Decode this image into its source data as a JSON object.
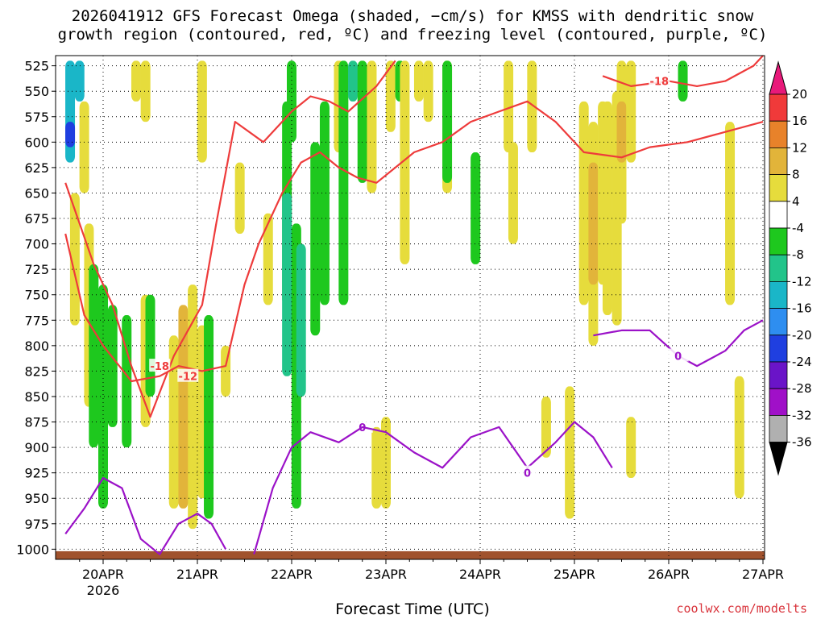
{
  "page": {
    "title_line1": "2026041912 GFS Forecast Omega (shaded, −cm/s) for KMSS with dendritic snow",
    "title_line2": "growth region (contoured, red, ºC) and freezing level (contoured, purple, ºC)",
    "xlabel": "Forecast Time (UTC)",
    "credit": "coolwx.com/modelts"
  },
  "chart_data": {
    "type": "heatmap",
    "title": "2026041912 GFS Forecast Omega (shaded, −cm/s) for KMSS with dendritic snow growth region (contoured, red, ºC) and freezing level (contoured, purple, ºC)",
    "xlabel": "Forecast Time (UTC)",
    "ylabel": "",
    "x_axis": {
      "ticks": [
        "20APR",
        "21APR",
        "22APR",
        "23APR",
        "24APR",
        "25APR",
        "26APR",
        "27APR"
      ],
      "tick_sublabel": {
        "20APR": "2026"
      },
      "xlim_days": [
        -0.4,
        7.0
      ]
    },
    "y_axis": {
      "ticks": [
        525,
        550,
        575,
        600,
        625,
        650,
        675,
        700,
        725,
        750,
        775,
        800,
        825,
        850,
        875,
        900,
        925,
        950,
        975,
        1000
      ],
      "ylim": [
        1010,
        515
      ],
      "units": "hPa"
    },
    "grid": true,
    "colorbar": {
      "levels": [
        20,
        16,
        12,
        8,
        4,
        -4,
        -8,
        -12,
        -16,
        -20,
        -24,
        -28,
        -32,
        -36
      ],
      "colors": [
        "#e8197a",
        "#f03a3a",
        "#e8822a",
        "#e2b43a",
        "#e6dc3c",
        "#ffffff",
        "#1ec81e",
        "#22c48a",
        "#1ab6c8",
        "#2e8ef0",
        "#1f3fe0",
        "#6a14c8",
        "#a010c8",
        "#b0b0b0",
        "#000000"
      ]
    },
    "omega_cells": [
      {
        "t": -0.35,
        "p0": 520,
        "p1": 620,
        "v": -14
      },
      {
        "t": -0.35,
        "p0": 580,
        "p1": 605,
        "v": -22
      },
      {
        "t": -0.25,
        "p0": 520,
        "p1": 560,
        "v": -14
      },
      {
        "t": -0.2,
        "p0": 560,
        "p1": 650,
        "v": 5
      },
      {
        "t": -0.3,
        "p0": 650,
        "p1": 780,
        "v": 5
      },
      {
        "t": -0.15,
        "p0": 680,
        "p1": 860,
        "v": 5
      },
      {
        "t": -0.1,
        "p0": 720,
        "p1": 900,
        "v": -6
      },
      {
        "t": 0.0,
        "p0": 740,
        "p1": 960,
        "v": -6
      },
      {
        "t": 0.1,
        "p0": 760,
        "p1": 880,
        "v": -6
      },
      {
        "t": 0.25,
        "p0": 770,
        "p1": 900,
        "v": -6
      },
      {
        "t": 0.35,
        "p0": 520,
        "p1": 560,
        "v": 5
      },
      {
        "t": 0.45,
        "p0": 520,
        "p1": 580,
        "v": 5
      },
      {
        "t": 0.45,
        "p0": 750,
        "p1": 880,
        "v": 5
      },
      {
        "t": 0.5,
        "p0": 750,
        "p1": 850,
        "v": -6
      },
      {
        "t": 0.75,
        "p0": 790,
        "p1": 960,
        "v": 5
      },
      {
        "t": 0.85,
        "p0": 760,
        "p1": 960,
        "v": 9
      },
      {
        "t": 0.95,
        "p0": 790,
        "p1": 960,
        "v": 13
      },
      {
        "t": 0.95,
        "p0": 740,
        "p1": 980,
        "v": 5
      },
      {
        "t": 1.05,
        "p0": 780,
        "p1": 950,
        "v": 7
      },
      {
        "t": 1.05,
        "p0": 520,
        "p1": 620,
        "v": 5
      },
      {
        "t": 1.12,
        "p0": 770,
        "p1": 970,
        "v": -6
      },
      {
        "t": 1.3,
        "p0": 800,
        "p1": 850,
        "v": 5
      },
      {
        "t": 1.45,
        "p0": 620,
        "p1": 690,
        "v": 5
      },
      {
        "t": 1.75,
        "p0": 670,
        "p1": 760,
        "v": 5
      },
      {
        "t": 1.95,
        "p0": 560,
        "p1": 760,
        "v": -6
      },
      {
        "t": 1.95,
        "p0": 650,
        "p1": 830,
        "v": -10
      },
      {
        "t": 2.0,
        "p0": 520,
        "p1": 600,
        "v": -6
      },
      {
        "t": 2.05,
        "p0": 680,
        "p1": 960,
        "v": -6
      },
      {
        "t": 2.1,
        "p0": 700,
        "p1": 850,
        "v": -10
      },
      {
        "t": 2.25,
        "p0": 600,
        "p1": 790,
        "v": -6
      },
      {
        "t": 2.35,
        "p0": 560,
        "p1": 760,
        "v": -6
      },
      {
        "t": 2.5,
        "p0": 520,
        "p1": 610,
        "v": 5
      },
      {
        "t": 2.55,
        "p0": 520,
        "p1": 760,
        "v": -6
      },
      {
        "t": 2.65,
        "p0": 520,
        "p1": 560,
        "v": -10
      },
      {
        "t": 2.75,
        "p0": 520,
        "p1": 640,
        "v": -6
      },
      {
        "t": 2.85,
        "p0": 520,
        "p1": 650,
        "v": 5
      },
      {
        "t": 2.9,
        "p0": 880,
        "p1": 960,
        "v": 5
      },
      {
        "t": 3.0,
        "p0": 870,
        "p1": 960,
        "v": 5
      },
      {
        "t": 3.05,
        "p0": 520,
        "p1": 590,
        "v": 5
      },
      {
        "t": 3.15,
        "p0": 520,
        "p1": 560,
        "v": -6
      },
      {
        "t": 3.2,
        "p0": 520,
        "p1": 720,
        "v": 5
      },
      {
        "t": 3.35,
        "p0": 520,
        "p1": 560,
        "v": 5
      },
      {
        "t": 3.45,
        "p0": 520,
        "p1": 580,
        "v": 5
      },
      {
        "t": 3.65,
        "p0": 520,
        "p1": 650,
        "v": 5
      },
      {
        "t": 3.65,
        "p0": 520,
        "p1": 640,
        "v": -6
      },
      {
        "t": 3.95,
        "p0": 610,
        "p1": 720,
        "v": -6
      },
      {
        "t": 4.3,
        "p0": 520,
        "p1": 610,
        "v": 5
      },
      {
        "t": 4.35,
        "p0": 600,
        "p1": 700,
        "v": 5
      },
      {
        "t": 4.55,
        "p0": 520,
        "p1": 610,
        "v": 5
      },
      {
        "t": 4.7,
        "p0": 850,
        "p1": 910,
        "v": 5
      },
      {
        "t": 4.95,
        "p0": 840,
        "p1": 970,
        "v": 5
      },
      {
        "t": 5.1,
        "p0": 560,
        "p1": 760,
        "v": 5
      },
      {
        "t": 5.2,
        "p0": 580,
        "p1": 800,
        "v": 5
      },
      {
        "t": 5.2,
        "p0": 620,
        "p1": 740,
        "v": 8
      },
      {
        "t": 5.3,
        "p0": 560,
        "p1": 740,
        "v": 5
      },
      {
        "t": 5.35,
        "p0": 560,
        "p1": 770,
        "v": 5
      },
      {
        "t": 5.45,
        "p0": 550,
        "p1": 780,
        "v": 5
      },
      {
        "t": 5.5,
        "p0": 520,
        "p1": 680,
        "v": 5
      },
      {
        "t": 5.5,
        "p0": 560,
        "p1": 620,
        "v": 8
      },
      {
        "t": 5.6,
        "p0": 520,
        "p1": 620,
        "v": 5
      },
      {
        "t": 5.6,
        "p0": 870,
        "p1": 930,
        "v": 5
      },
      {
        "t": 6.15,
        "p0": 520,
        "p1": 560,
        "v": -6
      },
      {
        "t": 6.65,
        "p0": 580,
        "p1": 760,
        "v": 5
      },
      {
        "t": 6.75,
        "p0": 830,
        "p1": 950,
        "v": 5
      }
    ],
    "contours": {
      "red": [
        {
          "label": "-18",
          "label_at": [
            0.6,
            820
          ],
          "points": [
            [
              -0.4,
              640
            ],
            [
              -0.1,
              720
            ],
            [
              0.1,
              760
            ],
            [
              0.3,
              820
            ],
            [
              0.5,
              870
            ],
            [
              0.75,
              810
            ],
            [
              1.05,
              760
            ],
            [
              1.2,
              680
            ],
            [
              1.4,
              580
            ],
            [
              1.7,
              600
            ],
            [
              2.0,
              570
            ],
            [
              2.2,
              555
            ],
            [
              2.4,
              560
            ],
            [
              2.6,
              570
            ],
            [
              2.9,
              545
            ],
            [
              3.1,
              520
            ]
          ]
        },
        {
          "label": "-12",
          "label_at": [
            0.9,
            830
          ],
          "points": [
            [
              -0.4,
              690
            ],
            [
              -0.2,
              770
            ],
            [
              0.0,
              800
            ],
            [
              0.3,
              835
            ],
            [
              0.6,
              830
            ],
            [
              0.8,
              820
            ],
            [
              1.05,
              825
            ],
            [
              1.3,
              820
            ],
            [
              1.5,
              740
            ],
            [
              1.65,
              700
            ],
            [
              1.9,
              650
            ],
            [
              2.1,
              620
            ],
            [
              2.3,
              610
            ],
            [
              2.5,
              625
            ],
            [
              2.7,
              635
            ],
            [
              2.9,
              640
            ],
            [
              3.1,
              625
            ],
            [
              3.3,
              610
            ],
            [
              3.6,
              600
            ],
            [
              3.9,
              580
            ],
            [
              4.2,
              570
            ],
            [
              4.5,
              560
            ],
            [
              4.8,
              580
            ],
            [
              5.1,
              610
            ],
            [
              5.5,
              615
            ],
            [
              5.8,
              605
            ],
            [
              6.2,
              600
            ],
            [
              6.6,
              590
            ],
            [
              7.0,
              580
            ]
          ]
        },
        {
          "label": "-18",
          "label_at": [
            5.9,
            540
          ],
          "points": [
            [
              5.3,
              535
            ],
            [
              5.6,
              545
            ],
            [
              6.0,
              540
            ],
            [
              6.3,
              545
            ],
            [
              6.6,
              540
            ],
            [
              6.9,
              525
            ],
            [
              7.0,
              515
            ]
          ]
        }
      ],
      "purple": [
        {
          "label": "0",
          "label_at": [
            2.75,
            880
          ],
          "points": [
            [
              -0.4,
              985
            ],
            [
              -0.2,
              960
            ],
            [
              0.0,
              930
            ],
            [
              0.2,
              940
            ],
            [
              0.4,
              990
            ],
            [
              0.6,
              1005
            ],
            [
              0.8,
              975
            ],
            [
              1.0,
              965
            ],
            [
              1.15,
              975
            ],
            [
              1.3,
              1000
            ]
          ]
        },
        {
          "label": "0",
          "label_at": [
            4.5,
            925
          ],
          "points": [
            [
              1.6,
              1005
            ],
            [
              1.8,
              940
            ],
            [
              2.0,
              900
            ],
            [
              2.2,
              885
            ],
            [
              2.5,
              895
            ],
            [
              2.75,
              880
            ],
            [
              3.0,
              885
            ],
            [
              3.3,
              905
            ],
            [
              3.6,
              920
            ],
            [
              3.9,
              890
            ],
            [
              4.2,
              880
            ],
            [
              4.5,
              920
            ],
            [
              4.8,
              895
            ],
            [
              5.0,
              875
            ],
            [
              5.2,
              890
            ],
            [
              5.4,
              920
            ]
          ]
        },
        {
          "label": "0",
          "label_at": [
            6.1,
            810
          ],
          "points": [
            [
              5.2,
              790
            ],
            [
              5.5,
              785
            ],
            [
              5.8,
              785
            ],
            [
              6.1,
              810
            ],
            [
              6.3,
              820
            ],
            [
              6.6,
              805
            ],
            [
              6.8,
              785
            ],
            [
              7.0,
              775
            ]
          ]
        }
      ]
    },
    "terrain_top_hPa": 1002
  }
}
